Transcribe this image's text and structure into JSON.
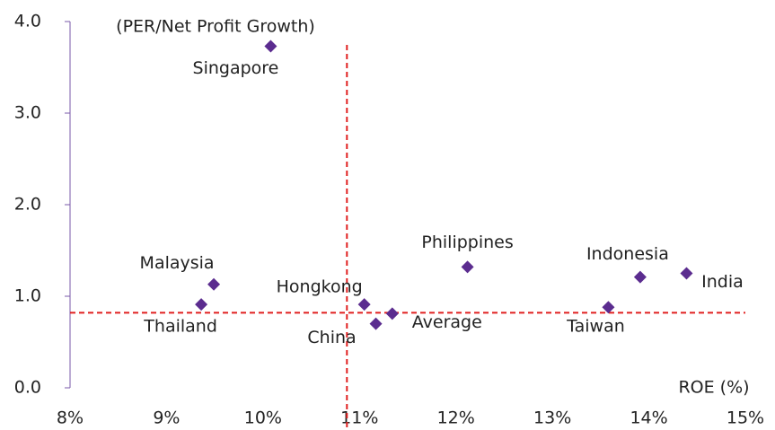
{
  "chart_data": {
    "type": "scatter",
    "y_label": "(PER/Net Profit Growth)",
    "x_label": "ROE (%)",
    "labels": [
      "Singapore",
      "Malaysia",
      "Thailand",
      "Hongkong",
      "China",
      "Average",
      "Philippines",
      "Taiwan",
      "Indonesia",
      "India"
    ],
    "x": [
      10.08,
      9.49,
      9.36,
      11.05,
      11.17,
      11.34,
      12.12,
      13.58,
      13.91,
      14.39
    ],
    "values": [
      3.73,
      1.13,
      0.91,
      0.91,
      0.7,
      0.81,
      1.32,
      0.88,
      1.21,
      1.25
    ],
    "color": "#5b2c8f",
    "ref_lines": {
      "x": 10.87,
      "y": 0.82,
      "color": "#e02020"
    },
    "xlim": [
      8,
      15
    ],
    "xticks": [
      {
        "value": 8,
        "label": "8%"
      },
      {
        "value": 9,
        "label": "9%"
      },
      {
        "value": 10,
        "label": "10%"
      },
      {
        "value": 11,
        "label": "11%"
      },
      {
        "value": 12,
        "label": "12%"
      },
      {
        "value": 13,
        "label": "13%"
      },
      {
        "value": 14,
        "label": "14%"
      },
      {
        "value": 15,
        "label": "15%"
      }
    ],
    "ylim": [
      0,
      4
    ],
    "yticks": [
      {
        "value": 0,
        "label": "0.0"
      },
      {
        "value": 1,
        "label": "1.0"
      },
      {
        "value": 2,
        "label": "2.0"
      },
      {
        "value": 3,
        "label": "3.0"
      },
      {
        "value": 4,
        "label": "4.0"
      }
    ]
  }
}
